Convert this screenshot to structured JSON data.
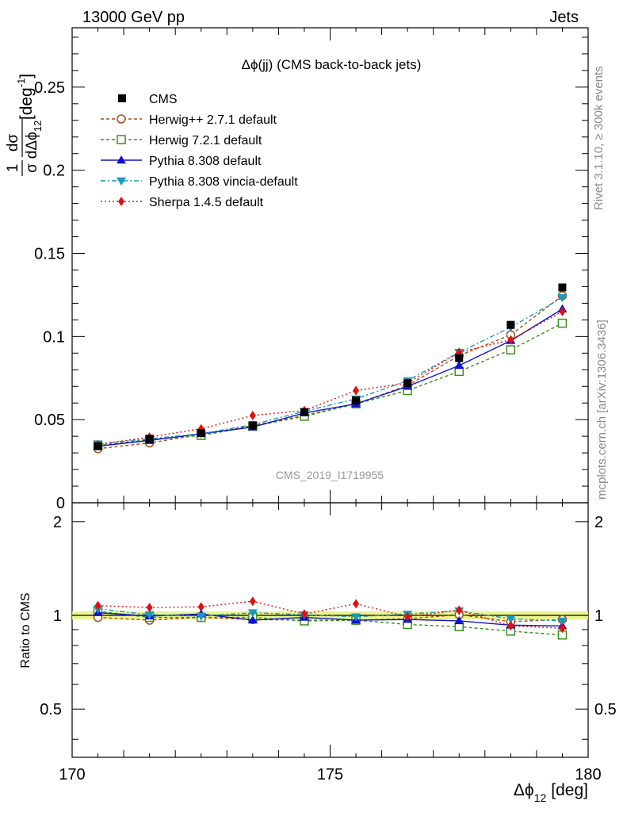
{
  "header": {
    "energy_label": "13000 GeV pp",
    "process_label": "Jets"
  },
  "side_labels": {
    "rivet": "Rivet 3.1.10, ≥ 300k events",
    "mcplots": "mcplots.cern.ch [arXiv:1306.3436]"
  },
  "chart_data": {
    "type": "scatter",
    "title": "Δϕ(jj) (CMS back-to-back jets)",
    "watermark": "CMS_2019_I1719955",
    "ylabel_main": "1/σ dσ/dΔϕ_12 [deg^-1]",
    "ylabel_main_parts": {
      "num": "1",
      "den": "σ",
      "dnum": "dσ",
      "dden": "dΔϕ",
      "dden_sub": "12",
      "unit": "[deg",
      "unit_sup": "-1",
      "unit_close": "]"
    },
    "ylabel_ratio": "Ratio to CMS",
    "xlabel": "Δϕ_12 [deg]",
    "xlabel_parts": {
      "base": "Δϕ",
      "sub": "12",
      "unit": "[deg]"
    },
    "xlim": [
      170,
      180
    ],
    "ylim_main": [
      0,
      0.2857
    ],
    "ylim_ratio": [
      0.35,
      2.3
    ],
    "x_ticks": [
      "170",
      "175",
      "180"
    ],
    "y_ticks_main": [
      "0",
      "0.05",
      "0.1",
      "0.15",
      "0.2",
      "0.25"
    ],
    "y_ticks_ratio": [
      "0.5",
      "1",
      "2"
    ],
    "grid": false,
    "legend_position": "top-left",
    "x": [
      170.5,
      171.5,
      172.5,
      173.5,
      174.5,
      175.5,
      176.5,
      177.5,
      178.5,
      179.5
    ],
    "cms": [
      0.034,
      0.0385,
      0.042,
      0.0465,
      0.0545,
      0.0615,
      0.072,
      0.087,
      0.107,
      0.1295
    ],
    "series": [
      {
        "name": "Herwig++ 2.7.1 default",
        "color": "#a0521d",
        "dash": "4,3",
        "marker": "circle-open",
        "values": [
          0.0325,
          0.036,
          0.041,
          0.0465,
          0.0525,
          0.0595,
          0.0705,
          0.0885,
          0.101,
          0.1245
        ],
        "ratio": [
          0.985,
          0.965,
          0.985,
          0.97,
          0.965,
          0.965,
          0.975,
          1.005,
          0.955,
          0.97
        ]
      },
      {
        "name": "Herwig 7.2.1 default",
        "color": "#3d8f1a",
        "dash": "4,3",
        "marker": "square-open",
        "values": [
          0.0345,
          0.038,
          0.0405,
          0.046,
          0.052,
          0.0595,
          0.0675,
          0.079,
          0.092,
          0.108
        ],
        "ratio": [
          1.03,
          0.985,
          0.985,
          0.985,
          0.96,
          0.965,
          0.935,
          0.92,
          0.89,
          0.865
        ]
      },
      {
        "name": "Pythia 8.308 default",
        "color": "#1010d0",
        "dash": "",
        "marker": "triangle-up",
        "values": [
          0.034,
          0.0375,
          0.0415,
          0.0455,
          0.054,
          0.0595,
          0.07,
          0.0825,
          0.0975,
          0.1165
        ],
        "ratio": [
          1.02,
          0.995,
          1.01,
          0.965,
          0.985,
          0.965,
          0.97,
          0.96,
          0.93,
          0.925
        ]
      },
      {
        "name": "Pythia 8.308 vincia-default",
        "color": "#1a9abd",
        "dash": "6,3,2,3",
        "marker": "triangle-down",
        "values": [
          0.0355,
          0.0385,
          0.0415,
          0.047,
          0.055,
          0.0625,
          0.0735,
          0.0905,
          0.1055,
          0.1235
        ],
        "ratio": [
          1.05,
          1.005,
          0.995,
          1.02,
          1.005,
          0.99,
          1.01,
          1.035,
          0.975,
          0.96
        ]
      },
      {
        "name": "Sherpa 1.4.5 default",
        "color": "#e01010",
        "dash": "2,3",
        "marker": "diamond",
        "values": [
          0.035,
          0.0395,
          0.0445,
          0.0525,
          0.0555,
          0.0675,
          0.072,
          0.0905,
          0.098,
          0.115
        ],
        "ratio": [
          1.075,
          1.06,
          1.065,
          1.11,
          1.01,
          1.09,
          0.99,
          1.04,
          0.925,
          0.91
        ]
      }
    ],
    "cms_legend": "CMS"
  }
}
